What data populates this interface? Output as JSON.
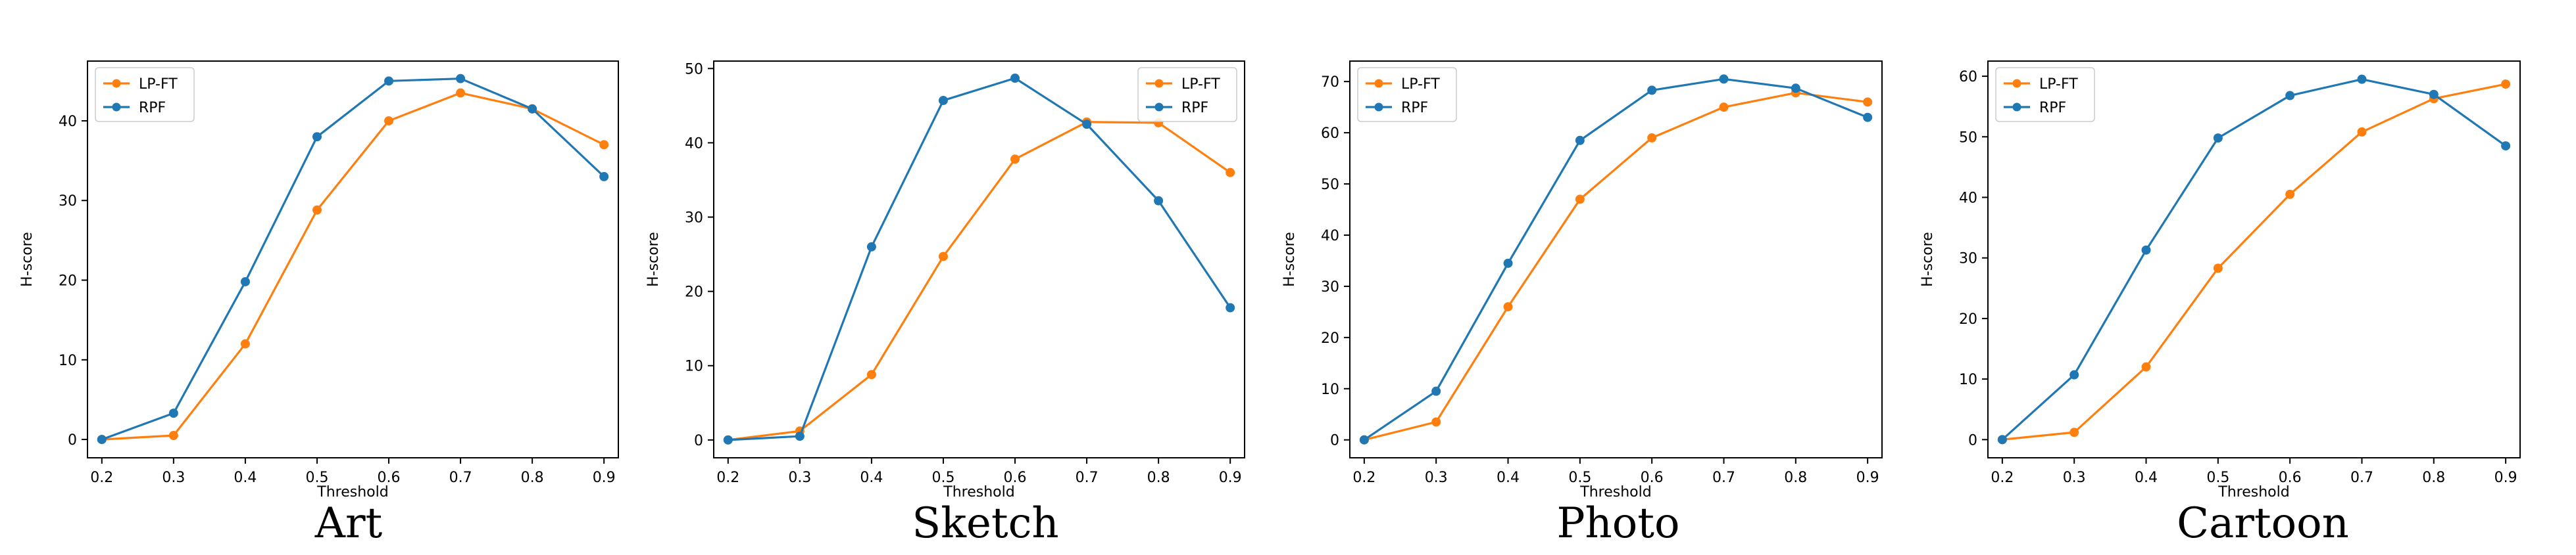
{
  "colors": {
    "lpft": "#ff7f0e",
    "rpf": "#1f77b4",
    "axis": "#000000"
  },
  "chart_data": [
    {
      "type": "line",
      "caption": "Art",
      "xlabel": "Threshold",
      "ylabel": "H-score",
      "x": [
        0.2,
        0.3,
        0.4,
        0.5,
        0.6,
        0.7,
        0.8,
        0.9
      ],
      "xticks": [
        "0.2",
        "0.3",
        "0.4",
        "0.5",
        "0.6",
        "0.7",
        "0.8",
        "0.9"
      ],
      "yticks": [
        0,
        10,
        20,
        30,
        40
      ],
      "ylim": [
        -2.3,
        47.5
      ],
      "legend": "top-left",
      "series": [
        {
          "name": "LP-FT",
          "values": [
            0,
            0.5,
            12,
            28.8,
            40,
            43.5,
            41.5,
            37
          ]
        },
        {
          "name": "RPF",
          "values": [
            0,
            3.3,
            19.8,
            38,
            45,
            45.3,
            41.5,
            33
          ]
        }
      ]
    },
    {
      "type": "line",
      "caption": "Sketch",
      "xlabel": "Threshold",
      "ylabel": "H-score",
      "x": [
        0.2,
        0.3,
        0.4,
        0.5,
        0.6,
        0.7,
        0.8,
        0.9
      ],
      "xticks": [
        "0.2",
        "0.3",
        "0.4",
        "0.5",
        "0.6",
        "0.7",
        "0.8",
        "0.9"
      ],
      "yticks": [
        0,
        10,
        20,
        30,
        40,
        50
      ],
      "ylim": [
        -2.4,
        51
      ],
      "legend": "top-right",
      "series": [
        {
          "name": "LP-FT",
          "values": [
            0,
            1.2,
            8.8,
            24.7,
            37.8,
            42.8,
            42.7,
            36
          ]
        },
        {
          "name": "RPF",
          "values": [
            0,
            0.5,
            26,
            45.7,
            48.7,
            42.5,
            32.2,
            17.8
          ]
        }
      ]
    },
    {
      "type": "line",
      "caption": "Photo",
      "xlabel": "Threshold",
      "ylabel": "H-score",
      "x": [
        0.2,
        0.3,
        0.4,
        0.5,
        0.6,
        0.7,
        0.8,
        0.9
      ],
      "xticks": [
        "0.2",
        "0.3",
        "0.4",
        "0.5",
        "0.6",
        "0.7",
        "0.8",
        "0.9"
      ],
      "yticks": [
        0,
        10,
        20,
        30,
        40,
        50,
        60,
        70
      ],
      "ylim": [
        -3.5,
        74
      ],
      "legend": "top-left",
      "series": [
        {
          "name": "LP-FT",
          "values": [
            0,
            3.5,
            26,
            47,
            59,
            65,
            67.8,
            66
          ]
        },
        {
          "name": "RPF",
          "values": [
            0,
            9.5,
            34.5,
            58.5,
            68.3,
            70.5,
            68.7,
            63
          ]
        }
      ]
    },
    {
      "type": "line",
      "caption": "Cartoon",
      "xlabel": "Threshold",
      "ylabel": "H-score",
      "x": [
        0.2,
        0.3,
        0.4,
        0.5,
        0.6,
        0.7,
        0.8,
        0.9
      ],
      "xticks": [
        "0.2",
        "0.3",
        "0.4",
        "0.5",
        "0.6",
        "0.7",
        "0.8",
        "0.9"
      ],
      "yticks": [
        0,
        10,
        20,
        30,
        40,
        50,
        60
      ],
      "ylim": [
        -3,
        62.5
      ],
      "legend": "top-left",
      "series": [
        {
          "name": "LP-FT",
          "values": [
            0,
            1.2,
            12,
            28.3,
            40.5,
            50.8,
            56.3,
            58.7
          ]
        },
        {
          "name": "RPF",
          "values": [
            0,
            10.7,
            31.3,
            49.8,
            56.8,
            59.5,
            57,
            48.5
          ]
        }
      ]
    }
  ]
}
